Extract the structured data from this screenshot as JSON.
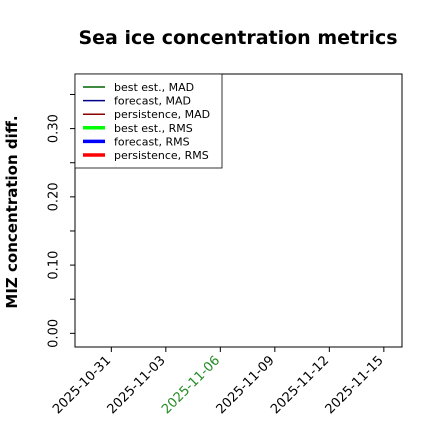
{
  "chart_data": {
    "type": "line",
    "title": "Sea ice concentration metrics",
    "xlabel": "",
    "ylabel": "MIZ concentration diff.",
    "ylim": [
      -0.02,
      0.38
    ],
    "xlim": [
      "2025-10-29",
      "2025-11-16"
    ],
    "yticks": [
      "0.00",
      "0.10",
      "0.20",
      "0.30"
    ],
    "xticks": [
      {
        "label": "2025-10-31",
        "color": "#000000"
      },
      {
        "label": "2025-11-03",
        "color": "#000000"
      },
      {
        "label": "2025-11-06",
        "color": "#228b22"
      },
      {
        "label": "2025-11-09",
        "color": "#000000"
      },
      {
        "label": "2025-11-12",
        "color": "#000000"
      },
      {
        "label": "2025-11-15",
        "color": "#000000"
      }
    ],
    "legend_position": "top-left",
    "grid": false,
    "series": [
      {
        "name": "best est., MAD",
        "color": "#006400",
        "linewidth": "thin",
        "values": []
      },
      {
        "name": "forecast,  MAD",
        "color": "#00008b",
        "linewidth": "thin",
        "values": []
      },
      {
        "name": "persistence, MAD",
        "color": "#8b0000",
        "linewidth": "thin",
        "values": []
      },
      {
        "name": "best est., RMS",
        "color": "#00ff00",
        "linewidth": "thick",
        "values": []
      },
      {
        "name": "forecast,  RMS",
        "color": "#0000ff",
        "linewidth": "thick",
        "values": []
      },
      {
        "name": "persistence, RMS",
        "color": "#ff0000",
        "linewidth": "thick",
        "values": []
      }
    ]
  }
}
